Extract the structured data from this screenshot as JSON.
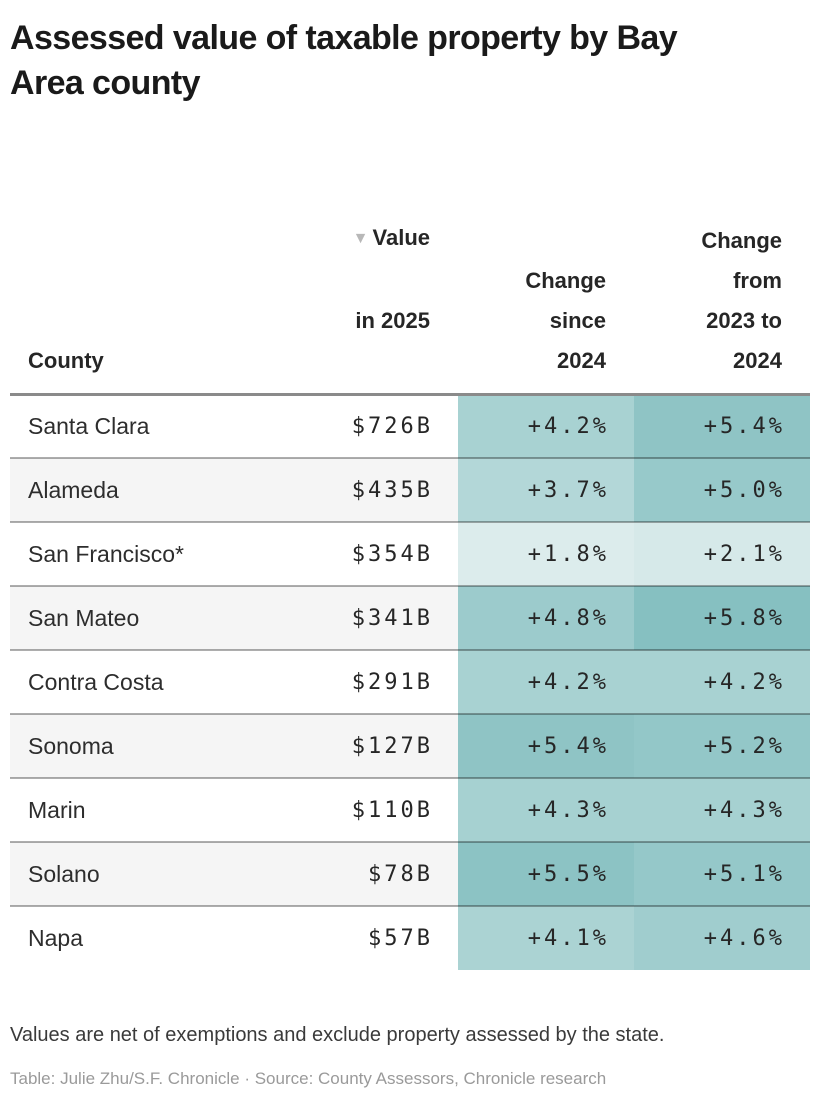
{
  "page": {
    "title": "Assessed value of taxable property by Bay Area county",
    "notes": "Values are net of exemptions and exclude property assessed by the state.",
    "credit": "Table: Julie Zhu/S.F. Chronicle · Source: County Assessors, Chronicle research"
  },
  "table": {
    "headers": {
      "county": "County",
      "value_sort_icon": "▼",
      "value_line1": "Value",
      "value_line2": "in 2025",
      "change_since": "Change\nsince\n2024",
      "change_prior": "Change\nfrom\n2023 to\n2024"
    },
    "rows": [
      {
        "county": "Santa Clara",
        "value": "$726B",
        "change_since": "+4.2%",
        "change_since_bg": "#a8d2d2",
        "change_prior": "+5.4%",
        "change_prior_bg": "#8fc4c5"
      },
      {
        "county": "Alameda",
        "value": "$435B",
        "change_since": "+3.7%",
        "change_since_bg": "#b3d7d8",
        "change_prior": "+5.0%",
        "change_prior_bg": "#97c9ca"
      },
      {
        "county": "San Francisco*",
        "value": "$354B",
        "change_since": "+1.8%",
        "change_since_bg": "#dcecec",
        "change_prior": "+2.1%",
        "change_prior_bg": "#d6e9e9"
      },
      {
        "county": "San Mateo",
        "value": "$341B",
        "change_since": "+4.8%",
        "change_since_bg": "#9ccbcc",
        "change_prior": "+5.8%",
        "change_prior_bg": "#86c0c1"
      },
      {
        "county": "Contra Costa",
        "value": "$291B",
        "change_since": "+4.2%",
        "change_since_bg": "#a8d2d2",
        "change_prior": "+4.2%",
        "change_prior_bg": "#a8d2d2"
      },
      {
        "county": "Sonoma",
        "value": "$127B",
        "change_since": "+5.4%",
        "change_since_bg": "#8fc4c5",
        "change_prior": "+5.2%",
        "change_prior_bg": "#93c7c8"
      },
      {
        "county": "Marin",
        "value": "$110B",
        "change_since": "+4.3%",
        "change_since_bg": "#a6d1d1",
        "change_prior": "+4.3%",
        "change_prior_bg": "#a6d1d1"
      },
      {
        "county": "Solano",
        "value": "$78B",
        "change_since": "+5.5%",
        "change_since_bg": "#8cc3c4",
        "change_prior": "+5.1%",
        "change_prior_bg": "#95c8c9"
      },
      {
        "county": "Napa",
        "value": "$57B",
        "change_since": "+4.1%",
        "change_since_bg": "#abd3d3",
        "change_prior": "+4.6%",
        "change_prior_bg": "#a0cdce"
      }
    ]
  },
  "colors": {
    "heatmap_min": "#dcecec",
    "heatmap_max": "#86c0c1",
    "stripe_row_bg": "#f5f5f5",
    "header_rule": "#8a8a8a",
    "title_text": "#1a1a1a",
    "credit_text": "#9a9a9a"
  },
  "chart_data": {
    "type": "table",
    "title": "Assessed value of taxable property by Bay Area county",
    "columns": [
      "County",
      "Value in 2025",
      "Change since 2024",
      "Change from 2023 to 2024"
    ],
    "rows": [
      [
        "Santa Clara",
        726,
        4.2,
        5.4
      ],
      [
        "Alameda",
        435,
        3.7,
        5.0
      ],
      [
        "San Francisco*",
        354,
        1.8,
        2.1
      ],
      [
        "San Mateo",
        341,
        4.8,
        5.8
      ],
      [
        "Contra Costa",
        291,
        4.2,
        4.2
      ],
      [
        "Sonoma",
        127,
        5.4,
        5.2
      ],
      [
        "Marin",
        110,
        4.3,
        4.3
      ],
      [
        "Solano",
        78,
        5.5,
        5.1
      ],
      [
        "Napa",
        57,
        4.1,
        4.6
      ]
    ],
    "units": {
      "value": "USD billions",
      "change_columns": "percent"
    },
    "sorted_by": "Value in 2025 (descending)",
    "heatmap_columns": [
      "Change since 2024",
      "Change from 2023 to 2024"
    ],
    "heatmap_range": [
      1.8,
      5.8
    ],
    "notes": "Values are net of exemptions and exclude property assessed by the state.",
    "source": "County Assessors, Chronicle research",
    "credit": "Julie Zhu/S.F. Chronicle"
  }
}
